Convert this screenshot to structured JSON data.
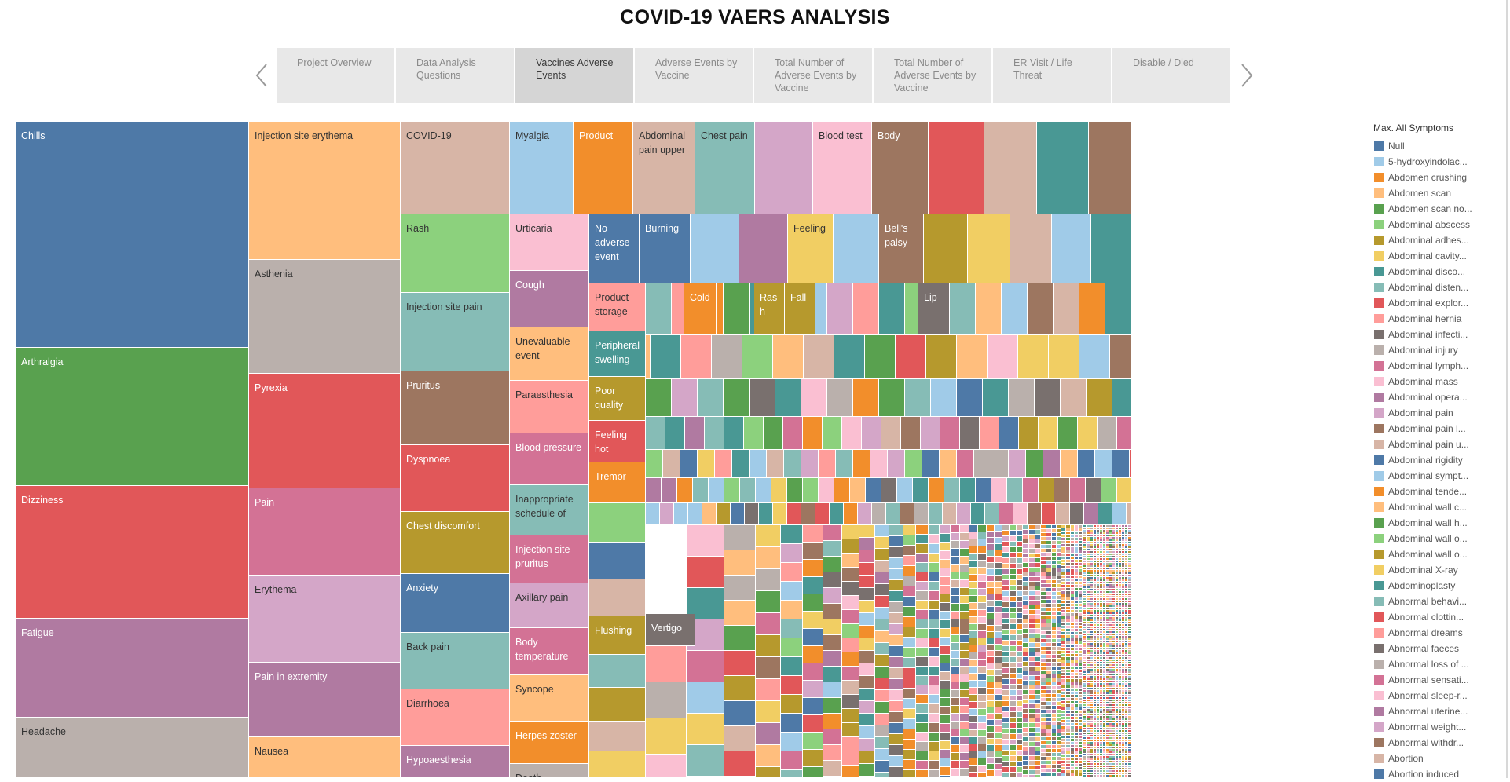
{
  "header": {
    "title": "COVID-19 VAERS ANALYSIS"
  },
  "nav": {
    "prev_icon": "chevron-left-icon",
    "next_icon": "chevron-right-icon",
    "tabs": [
      {
        "label": "Project Overview"
      },
      {
        "label": "Data Analysis Questions"
      },
      {
        "label": "Vaccines Adverse Events"
      },
      {
        "label": "Adverse Events by Vaccine"
      },
      {
        "label": "Total Number of Adverse Events by Vaccine"
      },
      {
        "label": "Total Number of Adverse Events by Vaccine"
      },
      {
        "label": "ER Visit / Life Threat"
      },
      {
        "label": "Disable / Died"
      }
    ],
    "active_index": 2
  },
  "palette": {
    "blue": "#4e79a7",
    "lightblue": "#a0cbe8",
    "orange": "#f28e2b",
    "peach": "#ffbe7d",
    "green": "#59a14f",
    "lightgreen": "#8cd17d",
    "olive": "#b6992d",
    "yellow": "#f1ce63",
    "teal": "#499894",
    "lightteal": "#86bcb6",
    "red": "#e15759",
    "salmon": "#ff9d9a",
    "gray": "#79706e",
    "lightgray": "#bab0ac",
    "pink": "#d37295",
    "lightpink": "#fabfd2",
    "purple": "#b07aa1",
    "lilac": "#d4a6c8",
    "brown": "#9d7660",
    "tan": "#d7b5a6"
  },
  "treemap": {
    "labeled_tiles": [
      {
        "label": "Chills",
        "color": "blue"
      },
      {
        "label": "Arthralgia",
        "color": "green"
      },
      {
        "label": "Dizziness",
        "color": "red"
      },
      {
        "label": "Fatigue",
        "color": "purple"
      },
      {
        "label": "Headache",
        "color": "lightgray"
      },
      {
        "label": "Injection site erythema",
        "color": "peach"
      },
      {
        "label": "Asthenia",
        "color": "lightgray"
      },
      {
        "label": "Pyrexia",
        "color": "red"
      },
      {
        "label": "Pain",
        "color": "pink"
      },
      {
        "label": "Erythema",
        "color": "lilac"
      },
      {
        "label": "Pain in extremity",
        "color": "purple"
      },
      {
        "label": "Nausea",
        "color": "peach"
      },
      {
        "label": "COVID-19",
        "color": "tan"
      },
      {
        "label": "Rash",
        "color": "lightgreen"
      },
      {
        "label": "Injection site pain",
        "color": "lightteal"
      },
      {
        "label": "Pruritus",
        "color": "brown"
      },
      {
        "label": "Dyspnoea",
        "color": "red"
      },
      {
        "label": "Chest discomfort",
        "color": "olive"
      },
      {
        "label": "Anxiety",
        "color": "blue"
      },
      {
        "label": "Back pain",
        "color": "lightteal"
      },
      {
        "label": "Diarrhoea",
        "color": "salmon"
      },
      {
        "label": "Hypoaesthesia",
        "color": "purple"
      },
      {
        "label": "Myalgia",
        "color": "lightblue"
      },
      {
        "label": "Product",
        "color": "orange"
      },
      {
        "label": "Abdominal pain upper",
        "color": "tan"
      },
      {
        "label": "Chest pain",
        "color": "lightteal"
      },
      {
        "label": "",
        "color": "lilac"
      },
      {
        "label": "Blood test",
        "color": "lightpink"
      },
      {
        "label": "Body",
        "color": "brown"
      },
      {
        "label": "",
        "color": "red"
      },
      {
        "label": "",
        "color": "tan"
      },
      {
        "label": "",
        "color": "teal"
      },
      {
        "label": "",
        "color": "brown"
      },
      {
        "label": "Urticaria",
        "color": "lightpink"
      },
      {
        "label": "Cough",
        "color": "purple"
      },
      {
        "label": "Unevaluable event",
        "color": "peach"
      },
      {
        "label": "Paraesthesia",
        "color": "salmon"
      },
      {
        "label": "Blood pressure",
        "color": "pink"
      },
      {
        "label": "Inappropriate schedule of",
        "color": "lightteal"
      },
      {
        "label": "Injection site pruritus",
        "color": "pink"
      },
      {
        "label": "Axillary pain",
        "color": "lilac"
      },
      {
        "label": "Body temperature",
        "color": "pink"
      },
      {
        "label": "Syncope",
        "color": "peach"
      },
      {
        "label": "Herpes zoster",
        "color": "orange"
      },
      {
        "label": "Death",
        "color": "lightgray"
      },
      {
        "label": "No adverse event",
        "color": "blue"
      },
      {
        "label": "Burning",
        "color": "blue"
      },
      {
        "label": "",
        "color": "lightblue"
      },
      {
        "label": "",
        "color": "purple"
      },
      {
        "label": "Feeling",
        "color": "yellow"
      },
      {
        "label": "",
        "color": "lightblue"
      },
      {
        "label": "Bell's palsy",
        "color": "brown"
      },
      {
        "label": "",
        "color": "olive"
      },
      {
        "label": "",
        "color": "yellow"
      },
      {
        "label": "",
        "color": "tan"
      },
      {
        "label": "",
        "color": "lightblue"
      },
      {
        "label": "",
        "color": "teal"
      },
      {
        "label": "Product storage",
        "color": "salmon"
      },
      {
        "label": "Peripheral swelling",
        "color": "teal"
      },
      {
        "label": "Poor quality",
        "color": "olive"
      },
      {
        "label": "Feeling hot",
        "color": "red"
      },
      {
        "label": "Tremor",
        "color": "orange"
      },
      {
        "label": "",
        "color": "lightgreen"
      },
      {
        "label": "",
        "color": "blue"
      },
      {
        "label": "",
        "color": "tan"
      },
      {
        "label": "Flushing",
        "color": "olive"
      },
      {
        "label": "",
        "color": "lightteal"
      },
      {
        "label": "",
        "color": "olive"
      },
      {
        "label": "",
        "color": "tan"
      },
      {
        "label": "",
        "color": "yellow"
      },
      {
        "label": "Vertigo",
        "color": "gray"
      },
      {
        "label": "Cold",
        "color": "orange"
      },
      {
        "label": "Rash",
        "color": "olive"
      },
      {
        "label": "Fall",
        "color": "olive"
      },
      {
        "label": "Lip",
        "color": "gray"
      }
    ],
    "mosaic_colors": [
      "blue",
      "lightblue",
      "orange",
      "peach",
      "green",
      "lightgreen",
      "olive",
      "yellow",
      "teal",
      "lightteal",
      "red",
      "salmon",
      "gray",
      "lightgray",
      "pink",
      "lightpink",
      "purple",
      "lilac",
      "brown",
      "tan"
    ]
  },
  "legend": {
    "title": "Max. All Symptoms",
    "items": [
      {
        "label": "Null",
        "color": "#4e79a7"
      },
      {
        "label": "5-hydroxyindolac...",
        "color": "#a0cbe8"
      },
      {
        "label": "Abdomen crushing",
        "color": "#f28e2b"
      },
      {
        "label": "Abdomen scan",
        "color": "#ffbe7d"
      },
      {
        "label": "Abdomen scan no...",
        "color": "#59a14f"
      },
      {
        "label": "Abdominal abscess",
        "color": "#8cd17d"
      },
      {
        "label": "Abdominal adhes...",
        "color": "#b6992d"
      },
      {
        "label": "Abdominal cavity...",
        "color": "#f1ce63"
      },
      {
        "label": "Abdominal disco...",
        "color": "#499894"
      },
      {
        "label": "Abdominal disten...",
        "color": "#86bcb6"
      },
      {
        "label": "Abdominal explor...",
        "color": "#e15759"
      },
      {
        "label": "Abdominal hernia",
        "color": "#ff9d9a"
      },
      {
        "label": "Abdominal infecti...",
        "color": "#79706e"
      },
      {
        "label": "Abdominal injury",
        "color": "#bab0ac"
      },
      {
        "label": "Abdominal lymph...",
        "color": "#d37295"
      },
      {
        "label": "Abdominal mass",
        "color": "#fabfd2"
      },
      {
        "label": "Abdominal opera...",
        "color": "#b07aa1"
      },
      {
        "label": "Abdominal pain",
        "color": "#d4a6c8"
      },
      {
        "label": "Abdominal pain l...",
        "color": "#9d7660"
      },
      {
        "label": "Abdominal pain u...",
        "color": "#d7b5a6"
      },
      {
        "label": "Abdominal rigidity",
        "color": "#4e79a7"
      },
      {
        "label": "Abdominal sympt...",
        "color": "#a0cbe8"
      },
      {
        "label": "Abdominal tende...",
        "color": "#f28e2b"
      },
      {
        "label": "Abdominal wall c...",
        "color": "#ffbe7d"
      },
      {
        "label": "Abdominal wall h...",
        "color": "#59a14f"
      },
      {
        "label": "Abdominal wall o...",
        "color": "#8cd17d"
      },
      {
        "label": "Abdominal wall o...",
        "color": "#b6992d"
      },
      {
        "label": "Abdominal X-ray",
        "color": "#f1ce63"
      },
      {
        "label": "Abdominoplasty",
        "color": "#499894"
      },
      {
        "label": "Abnormal behavi...",
        "color": "#86bcb6"
      },
      {
        "label": "Abnormal clottin...",
        "color": "#e15759"
      },
      {
        "label": "Abnormal dreams",
        "color": "#ff9d9a"
      },
      {
        "label": "Abnormal faeces",
        "color": "#79706e"
      },
      {
        "label": "Abnormal loss of ...",
        "color": "#bab0ac"
      },
      {
        "label": "Abnormal sensati...",
        "color": "#d37295"
      },
      {
        "label": "Abnormal sleep-r...",
        "color": "#fabfd2"
      },
      {
        "label": "Abnormal uterine...",
        "color": "#b07aa1"
      },
      {
        "label": "Abnormal weight...",
        "color": "#d4a6c8"
      },
      {
        "label": "Abnormal withdr...",
        "color": "#9d7660"
      },
      {
        "label": "Abortion",
        "color": "#d7b5a6"
      },
      {
        "label": "Abortion induced",
        "color": "#4e79a7"
      }
    ]
  }
}
